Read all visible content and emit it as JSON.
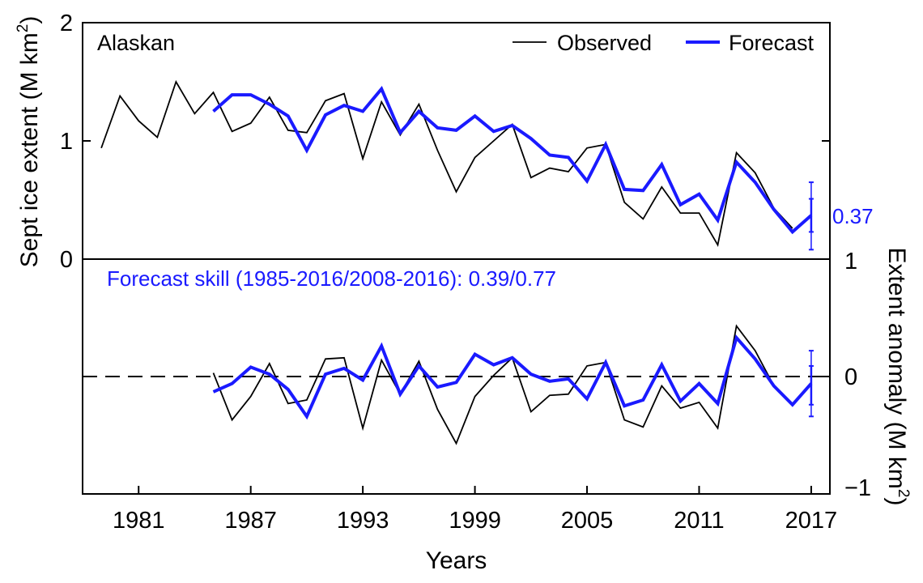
{
  "chart_data": [
    {
      "type": "line",
      "panel_label": "Alaskan",
      "ylabel": "Sept ice extent (M km",
      "ylabel_sup": "2",
      "ylabel_close": ")",
      "ylim": [
        0,
        2
      ],
      "yticks": [
        {
          "v": 0,
          "label": "0"
        },
        {
          "v": 1,
          "label": "1"
        },
        {
          "v": 2,
          "label": "2"
        }
      ],
      "legend": {
        "position": "top-right",
        "entries": [
          "Observed",
          "Forecast"
        ]
      },
      "colors": {
        "observed": "#000000",
        "forecast": "#1a1aff"
      },
      "series": [
        {
          "name": "Observed",
          "x": [
            1979,
            1980,
            1981,
            1982,
            1983,
            1984,
            1985,
            1986,
            1987,
            1988,
            1989,
            1990,
            1991,
            1992,
            1993,
            1994,
            1995,
            1996,
            1997,
            1998,
            1999,
            2000,
            2001,
            2002,
            2003,
            2004,
            2005,
            2006,
            2007,
            2008,
            2009,
            2010,
            2011,
            2012,
            2013,
            2014,
            2015,
            2016
          ],
          "y": [
            0.94,
            1.38,
            1.17,
            1.03,
            1.5,
            1.23,
            1.41,
            1.08,
            1.15,
            1.37,
            1.09,
            1.07,
            1.34,
            1.4,
            0.85,
            1.33,
            1.05,
            1.31,
            0.92,
            0.57,
            0.86,
            1.0,
            1.14,
            0.69,
            0.77,
            0.74,
            0.94,
            0.97,
            0.48,
            0.34,
            0.61,
            0.39,
            0.39,
            0.12,
            0.9,
            0.73,
            0.43,
            0.26
          ]
        },
        {
          "name": "Forecast",
          "x": [
            1985,
            1986,
            1987,
            1988,
            1989,
            1990,
            1991,
            1992,
            1993,
            1994,
            1995,
            1996,
            1997,
            1998,
            1999,
            2000,
            2001,
            2002,
            2003,
            2004,
            2005,
            2006,
            2007,
            2008,
            2009,
            2010,
            2011,
            2012,
            2013,
            2014,
            2015,
            2016,
            2017
          ],
          "y": [
            1.25,
            1.39,
            1.39,
            1.31,
            1.21,
            0.92,
            1.22,
            1.3,
            1.25,
            1.44,
            1.07,
            1.25,
            1.11,
            1.09,
            1.21,
            1.08,
            1.13,
            1.02,
            0.88,
            0.86,
            0.66,
            0.97,
            0.59,
            0.58,
            0.8,
            0.46,
            0.55,
            0.33,
            0.82,
            0.65,
            0.42,
            0.23,
            0.37
          ]
        }
      ],
      "errorbar": {
        "x": 2017,
        "y": 0.37,
        "inner": [
          0.23,
          0.51
        ],
        "outer": [
          0.08,
          0.65
        ]
      },
      "end_label": "0.37"
    },
    {
      "type": "line",
      "annotation": "Forecast skill (1985-2016/2008-2016): 0.39/0.77",
      "ylabel": "Extent anomaly (M km",
      "ylabel_sup": "2",
      "ylabel_close": ")",
      "ylim": [
        -1,
        1
      ],
      "yticks": [
        {
          "v": -1,
          "label": "−1"
        },
        {
          "v": 0,
          "label": "0"
        },
        {
          "v": 1,
          "label": "1"
        }
      ],
      "zero_line": "dashed",
      "series": [
        {
          "name": "Observed",
          "x": [
            1985,
            1986,
            1987,
            1988,
            1989,
            1990,
            1991,
            1992,
            1993,
            1994,
            1995,
            1996,
            1997,
            1998,
            1999,
            2000,
            2001,
            2002,
            2003,
            2004,
            2005,
            2006,
            2007,
            2008,
            2009,
            2010,
            2011,
            2012,
            2013,
            2014,
            2015,
            2016
          ],
          "y": [
            0.03,
            -0.37,
            -0.17,
            0.11,
            -0.23,
            -0.2,
            0.15,
            0.16,
            -0.44,
            0.14,
            -0.15,
            0.13,
            -0.28,
            -0.57,
            -0.17,
            0.01,
            0.16,
            -0.3,
            -0.16,
            -0.15,
            0.09,
            0.12,
            -0.37,
            -0.43,
            -0.08,
            -0.27,
            -0.22,
            -0.44,
            0.43,
            0.22,
            -0.08,
            -0.24
          ]
        },
        {
          "name": "Forecast",
          "x": [
            1985,
            1986,
            1987,
            1988,
            1989,
            1990,
            1991,
            1992,
            1993,
            1994,
            1995,
            1996,
            1997,
            1998,
            1999,
            2000,
            2001,
            2002,
            2003,
            2004,
            2005,
            2006,
            2007,
            2008,
            2009,
            2010,
            2011,
            2012,
            2013,
            2014,
            2015,
            2016,
            2017
          ],
          "y": [
            -0.13,
            -0.06,
            0.08,
            0.02,
            -0.11,
            -0.34,
            0.02,
            0.07,
            -0.03,
            0.26,
            -0.15,
            0.09,
            -0.09,
            -0.05,
            0.19,
            0.1,
            0.16,
            0.02,
            -0.04,
            -0.02,
            -0.19,
            0.12,
            -0.25,
            -0.2,
            0.1,
            -0.21,
            -0.06,
            -0.23,
            0.33,
            0.15,
            -0.08,
            -0.24,
            -0.06
          ]
        }
      ],
      "errorbar": {
        "x": 2017,
        "y": -0.06,
        "inner": [
          -0.24,
          0.09
        ],
        "outer": [
          -0.34,
          0.22
        ]
      }
    }
  ],
  "xaxis": {
    "xlabel": "Years",
    "xlim": [
      1978,
      2018
    ],
    "ticks": [
      1981,
      1987,
      1993,
      1999,
      2005,
      2011,
      2017
    ]
  }
}
